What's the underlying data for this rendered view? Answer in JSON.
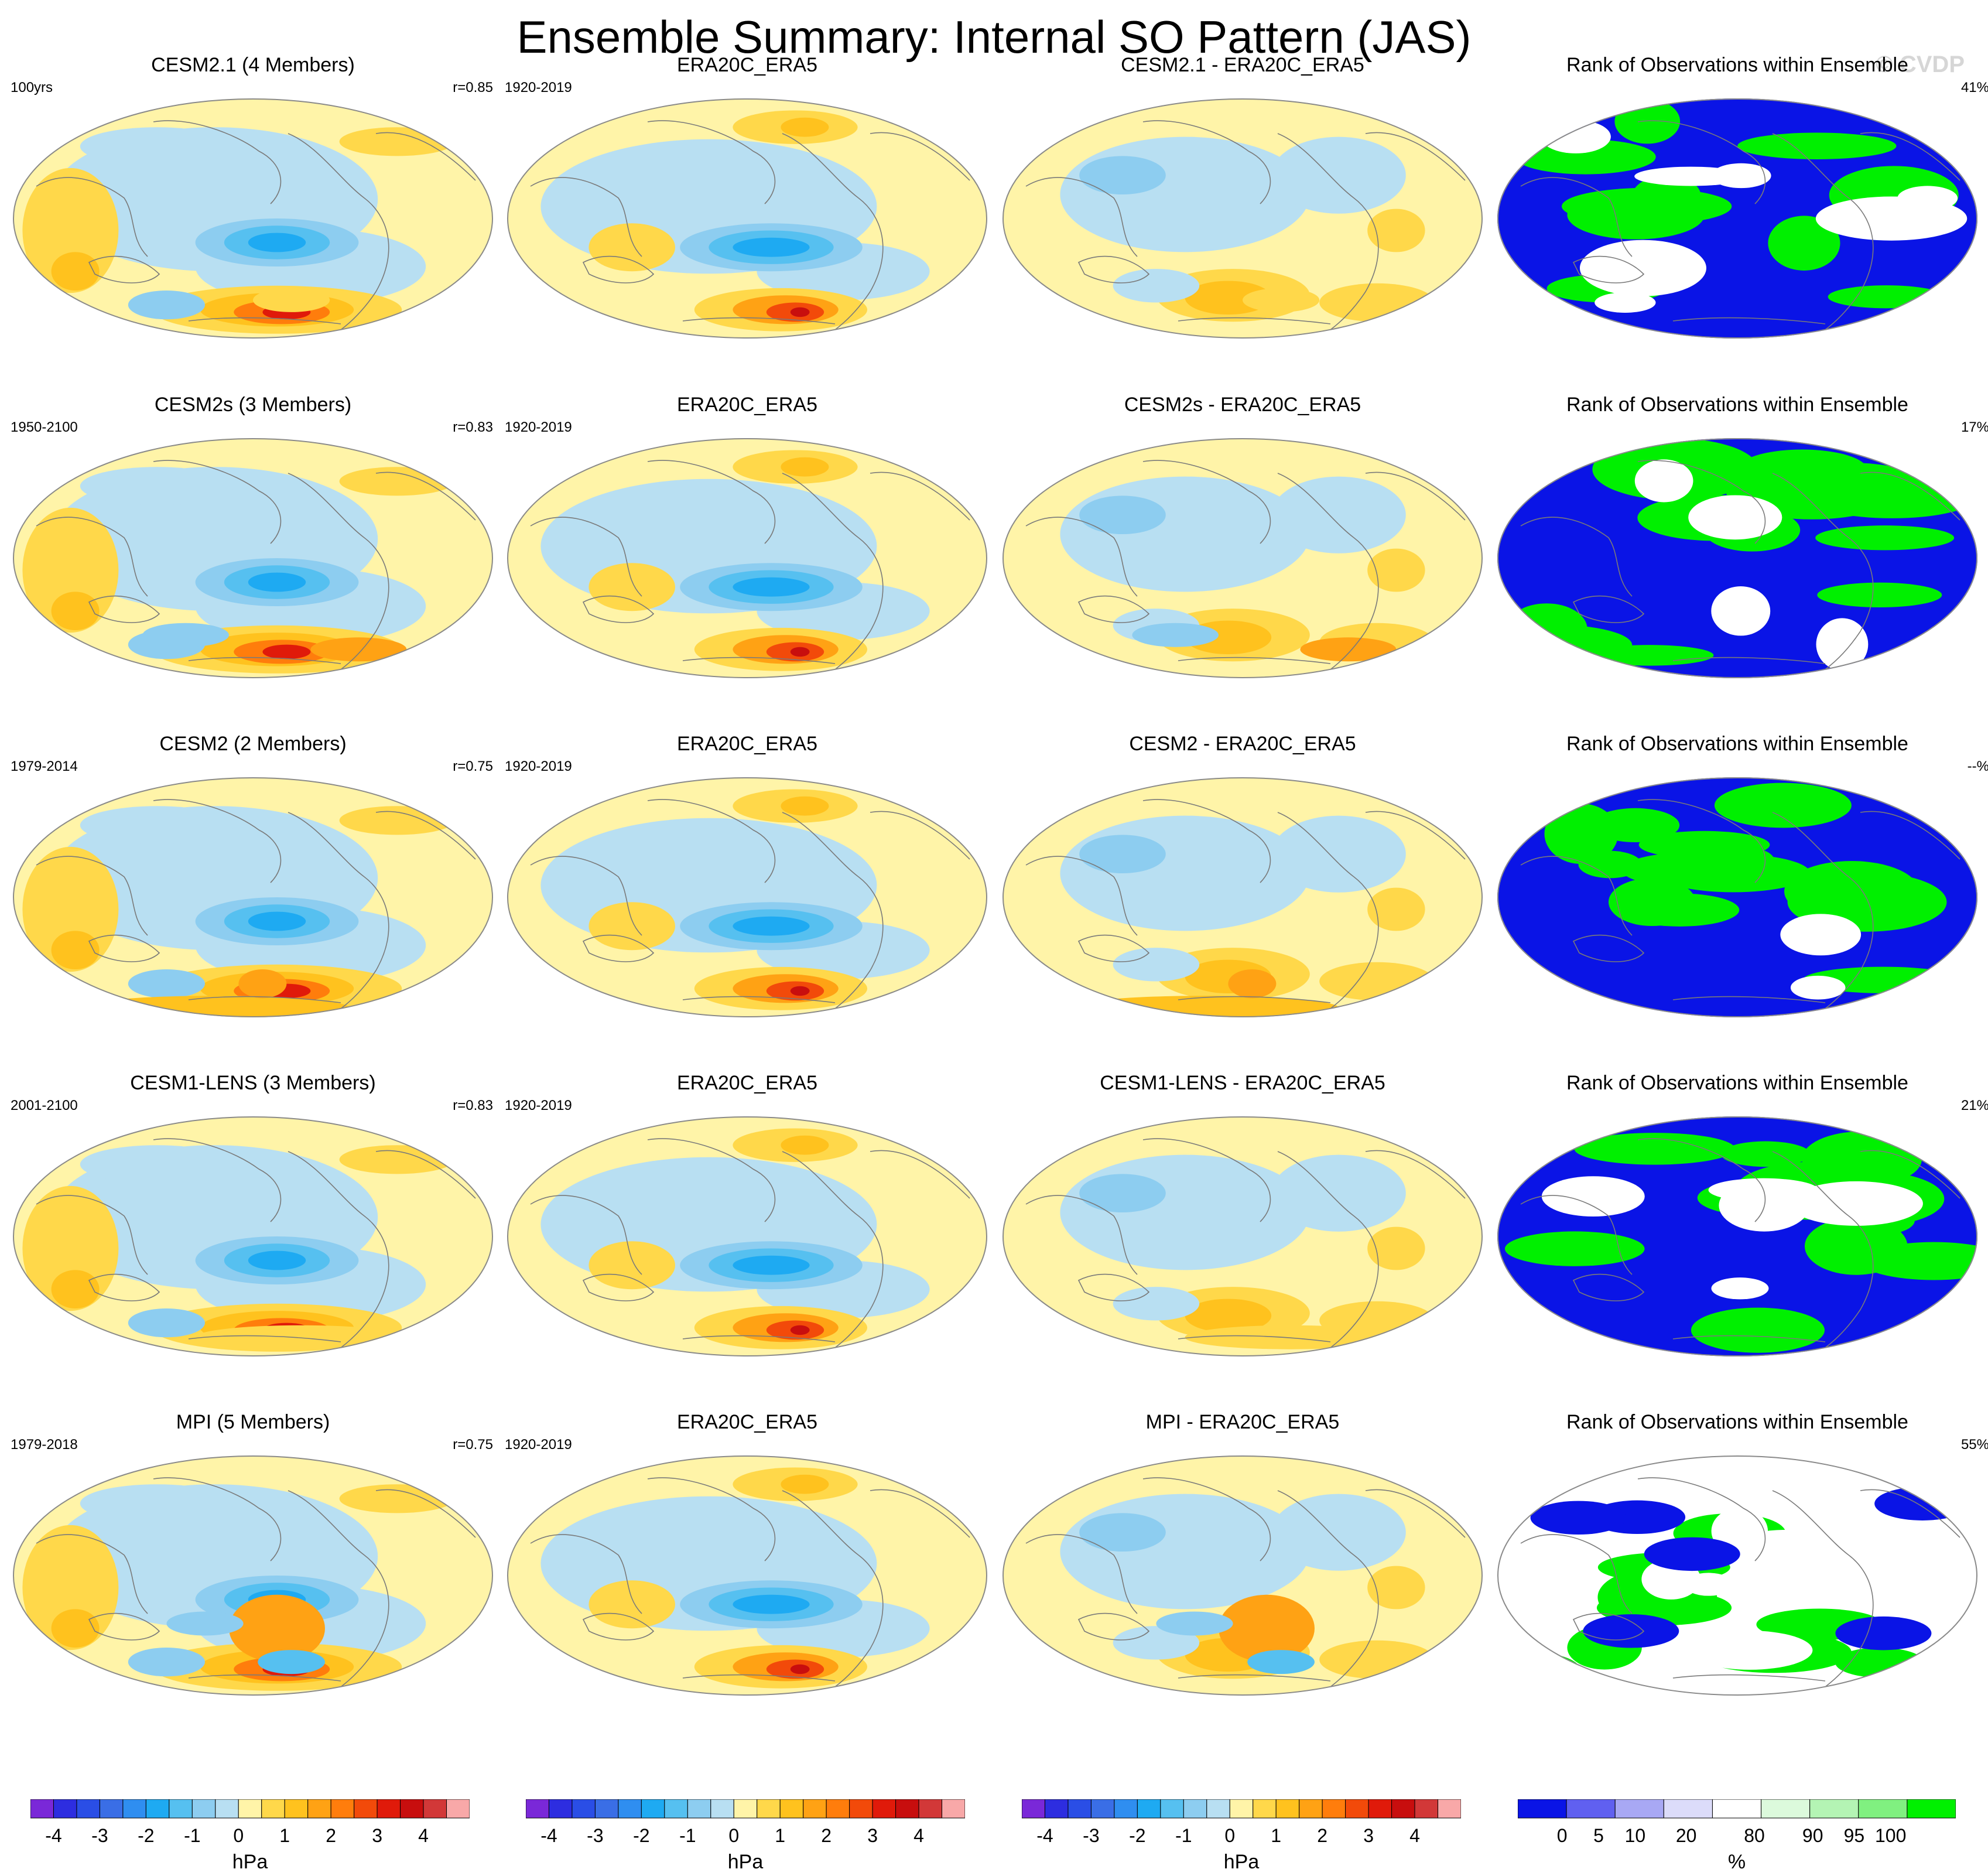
{
  "title": "Ensemble Summary: Internal SO Pattern (JAS)",
  "watermark": "© CVDP",
  "chart_data": {
    "type": "heatmap",
    "layout": "grid of global maps, 5 rows x 4 columns",
    "map_projection": "elliptical global projection",
    "rows": [
      {
        "model": {
          "title": "CESM2.1 (4 Members)",
          "period": "100yrs",
          "corr": "r=0.85"
        },
        "obs": {
          "title": "ERA20C_ERA5",
          "period": "1920-2019"
        },
        "diff": {
          "title": "CESM2.1 - ERA20C_ERA5"
        },
        "rank": {
          "title": "Rank of Observations within Ensemble",
          "pct": "41%"
        }
      },
      {
        "model": {
          "title": "CESM2s (3 Members)",
          "period": "1950-2100",
          "corr": "r=0.83"
        },
        "obs": {
          "title": "ERA20C_ERA5",
          "period": "1920-2019"
        },
        "diff": {
          "title": "CESM2s - ERA20C_ERA5"
        },
        "rank": {
          "title": "Rank of Observations within Ensemble",
          "pct": "17%"
        }
      },
      {
        "model": {
          "title": "CESM2 (2 Members)",
          "period": "1979-2014",
          "corr": "r=0.75"
        },
        "obs": {
          "title": "ERA20C_ERA5",
          "period": "1920-2019"
        },
        "diff": {
          "title": "CESM2 - ERA20C_ERA5"
        },
        "rank": {
          "title": "Rank of Observations within Ensemble",
          "pct": "--%"
        }
      },
      {
        "model": {
          "title": "CESM1-LENS (3 Members)",
          "period": "2001-2100",
          "corr": "r=0.83"
        },
        "obs": {
          "title": "ERA20C_ERA5",
          "period": "1920-2019"
        },
        "diff": {
          "title": "CESM1-LENS - ERA20C_ERA5"
        },
        "rank": {
          "title": "Rank of Observations within Ensemble",
          "pct": "21%"
        }
      },
      {
        "model": {
          "title": "MPI (5 Members)",
          "period": "1979-2018",
          "corr": "r=0.75"
        },
        "obs": {
          "title": "ERA20C_ERA5",
          "period": "1920-2019"
        },
        "diff": {
          "title": "MPI - ERA20C_ERA5"
        },
        "rank": {
          "title": "Rank of Observations within Ensemble",
          "pct": "55%"
        }
      }
    ],
    "colorbar_hpa": {
      "unit": "hPa",
      "tick_labels": [
        "-4",
        "-3",
        "-2",
        "-1",
        "0",
        "1",
        "2",
        "3",
        "4"
      ],
      "levels": [
        -4.5,
        -4,
        -3.5,
        -3,
        -2.5,
        -2,
        -1.5,
        -1,
        -0.5,
        0,
        0.5,
        1,
        1.5,
        2,
        2.5,
        3,
        3.5,
        4,
        4.5
      ],
      "colors": [
        "#7a28d8",
        "#2d2de0",
        "#2a4ee6",
        "#3a6ee6",
        "#2f8ef0",
        "#1eaaf2",
        "#56c0f0",
        "#8dcdf0",
        "#b8dff2",
        "#fff4a8",
        "#ffd84a",
        "#ffc21e",
        "#ffa214",
        "#ff7d0c",
        "#f24a0a",
        "#e01a0a",
        "#c80e0e",
        "#d23838",
        "#f8a8a8"
      ]
    },
    "colorbar_pct": {
      "unit": "%",
      "tick_labels": [
        "0",
        "5",
        "10",
        "20",
        "80",
        "90",
        "95",
        "100"
      ],
      "colors": [
        "#0a14e6",
        "#6060f0",
        "#a8a8f4",
        "#dcdcfa",
        "#ffffff",
        "#dcfadc",
        "#b4f4b4",
        "#80f080",
        "#00f000"
      ]
    }
  }
}
